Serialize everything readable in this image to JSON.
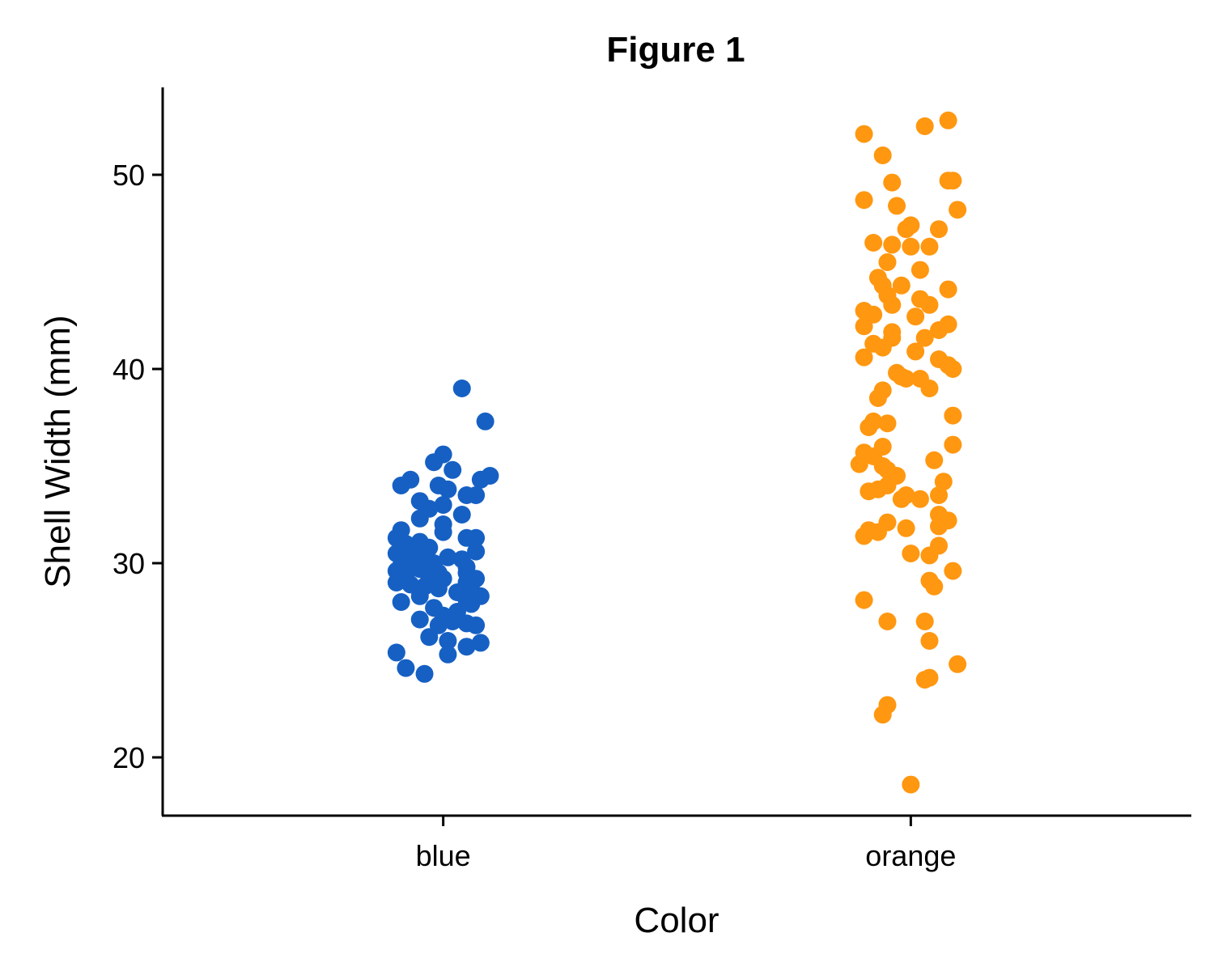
{
  "chart_data": {
    "type": "scatter",
    "title": "Figure 1",
    "xlabel": "Color",
    "ylabel": "Shell Width (mm)",
    "categories": [
      "blue",
      "orange"
    ],
    "ylim": [
      17,
      54.5
    ],
    "yticks": [
      20,
      30,
      40,
      50
    ],
    "grid": false,
    "legend": "none",
    "series": [
      {
        "category": "blue",
        "color": "#1660C4",
        "points": [
          {
            "x": 0.04,
            "y": 39.0
          },
          {
            "x": 0.09,
            "y": 37.3
          },
          {
            "x": 0.0,
            "y": 35.6
          },
          {
            "x": -0.02,
            "y": 35.2
          },
          {
            "x": 0.02,
            "y": 34.8
          },
          {
            "x": 0.1,
            "y": 34.5
          },
          {
            "x": 0.08,
            "y": 34.3
          },
          {
            "x": -0.07,
            "y": 34.3
          },
          {
            "x": -0.09,
            "y": 34.0
          },
          {
            "x": -0.01,
            "y": 34.0
          },
          {
            "x": 0.01,
            "y": 33.8
          },
          {
            "x": 0.05,
            "y": 33.5
          },
          {
            "x": 0.07,
            "y": 33.5
          },
          {
            "x": -0.05,
            "y": 33.2
          },
          {
            "x": 0.0,
            "y": 33.0
          },
          {
            "x": -0.03,
            "y": 32.8
          },
          {
            "x": 0.04,
            "y": 32.5
          },
          {
            "x": -0.05,
            "y": 32.3
          },
          {
            "x": 0.0,
            "y": 32.0
          },
          {
            "x": -0.09,
            "y": 31.7
          },
          {
            "x": 0.0,
            "y": 31.6
          },
          {
            "x": -0.1,
            "y": 31.3
          },
          {
            "x": 0.05,
            "y": 31.3
          },
          {
            "x": 0.07,
            "y": 31.3
          },
          {
            "x": -0.05,
            "y": 31.1
          },
          {
            "x": -0.08,
            "y": 31.0
          },
          {
            "x": -0.03,
            "y": 30.8
          },
          {
            "x": 0.07,
            "y": 30.6
          },
          {
            "x": -0.1,
            "y": 30.5
          },
          {
            "x": -0.06,
            "y": 30.5
          },
          {
            "x": -0.08,
            "y": 30.3
          },
          {
            "x": -0.04,
            "y": 30.2
          },
          {
            "x": 0.01,
            "y": 30.3
          },
          {
            "x": 0.04,
            "y": 30.2
          },
          {
            "x": -0.07,
            "y": 30.0
          },
          {
            "x": -0.02,
            "y": 30.0
          },
          {
            "x": -0.09,
            "y": 29.9
          },
          {
            "x": 0.05,
            "y": 29.8
          },
          {
            "x": -0.05,
            "y": 29.7
          },
          {
            "x": -0.1,
            "y": 29.6
          },
          {
            "x": -0.01,
            "y": 29.5
          },
          {
            "x": 0.05,
            "y": 29.5
          },
          {
            "x": -0.08,
            "y": 29.4
          },
          {
            "x": 0.07,
            "y": 29.2
          },
          {
            "x": -0.03,
            "y": 29.2
          },
          {
            "x": 0.0,
            "y": 29.2
          },
          {
            "x": -0.1,
            "y": 29.0
          },
          {
            "x": 0.05,
            "y": 29.0
          },
          {
            "x": -0.07,
            "y": 28.9
          },
          {
            "x": 0.06,
            "y": 28.9
          },
          {
            "x": -0.04,
            "y": 28.8
          },
          {
            "x": -0.01,
            "y": 28.7
          },
          {
            "x": 0.03,
            "y": 28.5
          },
          {
            "x": 0.08,
            "y": 28.3
          },
          {
            "x": -0.05,
            "y": 28.3
          },
          {
            "x": 0.05,
            "y": 28.1
          },
          {
            "x": -0.09,
            "y": 28.0
          },
          {
            "x": 0.06,
            "y": 27.9
          },
          {
            "x": -0.02,
            "y": 27.7
          },
          {
            "x": 0.03,
            "y": 27.5
          },
          {
            "x": 0.0,
            "y": 27.3
          },
          {
            "x": -0.05,
            "y": 27.1
          },
          {
            "x": 0.02,
            "y": 27.0
          },
          {
            "x": 0.05,
            "y": 26.9
          },
          {
            "x": -0.01,
            "y": 26.8
          },
          {
            "x": 0.07,
            "y": 26.8
          },
          {
            "x": -0.03,
            "y": 26.2
          },
          {
            "x": 0.01,
            "y": 26.0
          },
          {
            "x": 0.08,
            "y": 25.9
          },
          {
            "x": 0.05,
            "y": 25.7
          },
          {
            "x": -0.1,
            "y": 25.4
          },
          {
            "x": 0.01,
            "y": 25.3
          },
          {
            "x": -0.08,
            "y": 24.6
          },
          {
            "x": -0.04,
            "y": 24.3
          }
        ]
      },
      {
        "category": "orange",
        "color": "#FF9710",
        "points": [
          {
            "x": 0.08,
            "y": 52.8
          },
          {
            "x": 0.03,
            "y": 52.5
          },
          {
            "x": -0.1,
            "y": 52.1
          },
          {
            "x": -0.06,
            "y": 51.0
          },
          {
            "x": 0.08,
            "y": 49.7
          },
          {
            "x": 0.09,
            "y": 49.7
          },
          {
            "x": -0.04,
            "y": 49.6
          },
          {
            "x": -0.1,
            "y": 48.7
          },
          {
            "x": -0.03,
            "y": 48.4
          },
          {
            "x": 0.1,
            "y": 48.2
          },
          {
            "x": 0.0,
            "y": 47.4
          },
          {
            "x": -0.01,
            "y": 47.2
          },
          {
            "x": 0.06,
            "y": 47.2
          },
          {
            "x": -0.08,
            "y": 46.5
          },
          {
            "x": -0.04,
            "y": 46.4
          },
          {
            "x": 0.0,
            "y": 46.3
          },
          {
            "x": 0.04,
            "y": 46.3
          },
          {
            "x": -0.05,
            "y": 45.5
          },
          {
            "x": 0.02,
            "y": 45.1
          },
          {
            "x": -0.07,
            "y": 44.7
          },
          {
            "x": -0.06,
            "y": 44.3
          },
          {
            "x": -0.02,
            "y": 44.3
          },
          {
            "x": 0.08,
            "y": 44.1
          },
          {
            "x": -0.05,
            "y": 43.8
          },
          {
            "x": 0.02,
            "y": 43.6
          },
          {
            "x": -0.04,
            "y": 43.3
          },
          {
            "x": 0.04,
            "y": 43.3
          },
          {
            "x": -0.1,
            "y": 43.0
          },
          {
            "x": -0.08,
            "y": 42.8
          },
          {
            "x": 0.01,
            "y": 42.7
          },
          {
            "x": 0.08,
            "y": 42.3
          },
          {
            "x": -0.1,
            "y": 42.2
          },
          {
            "x": 0.06,
            "y": 42.0
          },
          {
            "x": -0.04,
            "y": 41.9
          },
          {
            "x": -0.04,
            "y": 41.6
          },
          {
            "x": 0.03,
            "y": 41.6
          },
          {
            "x": -0.08,
            "y": 41.3
          },
          {
            "x": -0.06,
            "y": 41.1
          },
          {
            "x": 0.01,
            "y": 40.9
          },
          {
            "x": -0.1,
            "y": 40.6
          },
          {
            "x": 0.06,
            "y": 40.5
          },
          {
            "x": 0.08,
            "y": 40.2
          },
          {
            "x": 0.09,
            "y": 40.0
          },
          {
            "x": -0.03,
            "y": 39.8
          },
          {
            "x": -0.02,
            "y": 39.6
          },
          {
            "x": -0.01,
            "y": 39.5
          },
          {
            "x": 0.02,
            "y": 39.5
          },
          {
            "x": 0.04,
            "y": 39.0
          },
          {
            "x": -0.06,
            "y": 38.9
          },
          {
            "x": -0.07,
            "y": 38.5
          },
          {
            "x": 0.09,
            "y": 37.6
          },
          {
            "x": -0.08,
            "y": 37.3
          },
          {
            "x": -0.05,
            "y": 37.2
          },
          {
            "x": -0.09,
            "y": 37.0
          },
          {
            "x": 0.09,
            "y": 36.1
          },
          {
            "x": -0.06,
            "y": 36.0
          },
          {
            "x": -0.1,
            "y": 35.7
          },
          {
            "x": -0.08,
            "y": 35.5
          },
          {
            "x": 0.05,
            "y": 35.3
          },
          {
            "x": -0.11,
            "y": 35.1
          },
          {
            "x": -0.06,
            "y": 35.0
          },
          {
            "x": -0.05,
            "y": 34.8
          },
          {
            "x": -0.03,
            "y": 34.5
          },
          {
            "x": 0.07,
            "y": 34.2
          },
          {
            "x": -0.05,
            "y": 34.0
          },
          {
            "x": -0.07,
            "y": 33.8
          },
          {
            "x": -0.09,
            "y": 33.7
          },
          {
            "x": -0.01,
            "y": 33.5
          },
          {
            "x": 0.06,
            "y": 33.5
          },
          {
            "x": 0.02,
            "y": 33.3
          },
          {
            "x": -0.02,
            "y": 33.3
          },
          {
            "x": 0.06,
            "y": 32.5
          },
          {
            "x": 0.08,
            "y": 32.2
          },
          {
            "x": 0.07,
            "y": 32.2
          },
          {
            "x": -0.05,
            "y": 32.1
          },
          {
            "x": 0.06,
            "y": 31.9
          },
          {
            "x": -0.01,
            "y": 31.8
          },
          {
            "x": -0.09,
            "y": 31.7
          },
          {
            "x": -0.07,
            "y": 31.6
          },
          {
            "x": -0.1,
            "y": 31.4
          },
          {
            "x": 0.06,
            "y": 30.9
          },
          {
            "x": 0.0,
            "y": 30.5
          },
          {
            "x": 0.04,
            "y": 30.4
          },
          {
            "x": 0.09,
            "y": 29.6
          },
          {
            "x": 0.04,
            "y": 29.1
          },
          {
            "x": 0.05,
            "y": 28.8
          },
          {
            "x": -0.1,
            "y": 28.1
          },
          {
            "x": -0.05,
            "y": 27.0
          },
          {
            "x": 0.03,
            "y": 27.0
          },
          {
            "x": 0.04,
            "y": 26.0
          },
          {
            "x": 0.1,
            "y": 24.8
          },
          {
            "x": 0.03,
            "y": 24.0
          },
          {
            "x": 0.04,
            "y": 24.1
          },
          {
            "x": -0.05,
            "y": 22.7
          },
          {
            "x": -0.06,
            "y": 22.2
          },
          {
            "x": 0.0,
            "y": 18.6
          }
        ]
      }
    ]
  }
}
